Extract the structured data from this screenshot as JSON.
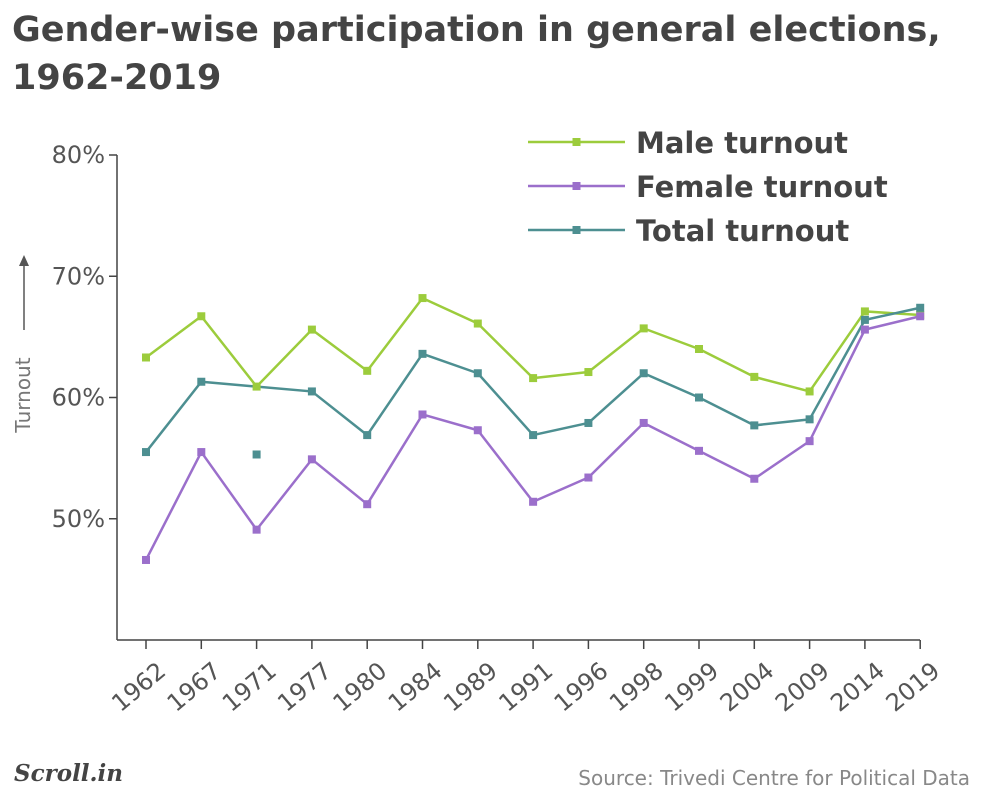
{
  "chart_data": {
    "type": "line",
    "title": "Gender-wise participation in general elections, 1962-2019",
    "categories": [
      "1962",
      "1967",
      "1971",
      "1977",
      "1980",
      "1984",
      "1989",
      "1991",
      "1996",
      "1998",
      "1999",
      "2004",
      "2009",
      "2014",
      "2019"
    ],
    "series": [
      {
        "name": "Male turnout",
        "color": "#9ccc3c",
        "points": [
          {
            "year": 1962,
            "value": 63.3
          },
          {
            "year": 1967,
            "value": 66.7
          },
          {
            "year": 1971,
            "value": 60.9
          },
          {
            "year": 1977,
            "value": 65.6
          },
          {
            "year": 1980,
            "value": 62.2
          },
          {
            "year": 1984,
            "value": 68.2
          },
          {
            "year": 1989,
            "value": 66.1
          },
          {
            "year": 1991,
            "value": 61.6
          },
          {
            "year": 1996,
            "value": 62.1
          },
          {
            "year": 1998,
            "value": 65.7
          },
          {
            "year": 1999,
            "value": 64.0
          },
          {
            "year": 2004,
            "value": 61.7
          },
          {
            "year": 2009,
            "value": 60.5
          },
          {
            "year": 2014,
            "value": 67.1
          },
          {
            "year": 2019,
            "value": 66.8
          }
        ]
      },
      {
        "name": "Female turnout",
        "color": "#9b6fcb",
        "points": [
          {
            "year": 1962,
            "value": 46.6
          },
          {
            "year": 1967,
            "value": 55.5
          },
          {
            "year": 1971,
            "value": 49.1
          },
          {
            "year": 1977,
            "value": 54.9
          },
          {
            "year": 1980,
            "value": 51.2
          },
          {
            "year": 1984,
            "value": 58.6
          },
          {
            "year": 1989,
            "value": 57.3
          },
          {
            "year": 1991,
            "value": 51.4
          },
          {
            "year": 1996,
            "value": 53.4
          },
          {
            "year": 1998,
            "value": 57.9
          },
          {
            "year": 1999,
            "value": 55.6
          },
          {
            "year": 2004,
            "value": 53.3
          },
          {
            "year": 2009,
            "value": 56.4
          },
          {
            "year": 2014,
            "value": 65.6
          },
          {
            "year": 2019,
            "value": 66.7
          }
        ]
      },
      {
        "name": "Total turnout",
        "color": "#4d8f91",
        "points": [
          {
            "year": 1962,
            "value": 55.5
          },
          {
            "year": 1967,
            "value": 61.3
          },
          {
            "year": 1977,
            "value": 60.5
          },
          {
            "year": 1980,
            "value": 56.9
          },
          {
            "year": 1984,
            "value": 63.6
          },
          {
            "year": 1989,
            "value": 62.0
          },
          {
            "year": 1991,
            "value": 56.9
          },
          {
            "year": 1996,
            "value": 57.9
          },
          {
            "year": 1998,
            "value": 62.0
          },
          {
            "year": 1999,
            "value": 60.0
          },
          {
            "year": 2004,
            "value": 57.7
          },
          {
            "year": 2009,
            "value": 58.2
          },
          {
            "year": 2014,
            "value": 66.4
          },
          {
            "year": 2019,
            "value": 67.4
          }
        ],
        "extra_points": [
          {
            "year": 1971,
            "value": 55.3
          }
        ]
      }
    ],
    "yaxis": {
      "label": "Turnout",
      "ticks": [
        50,
        60,
        70,
        80
      ],
      "tick_labels": [
        "50%",
        "60%",
        "70%",
        "80%"
      ],
      "ylim": [
        40,
        80
      ]
    },
    "legend": {
      "placement": "top-right"
    },
    "grid": false
  },
  "logo": "Scroll.in",
  "source": "Source: Trivedi Centre for Political Data"
}
